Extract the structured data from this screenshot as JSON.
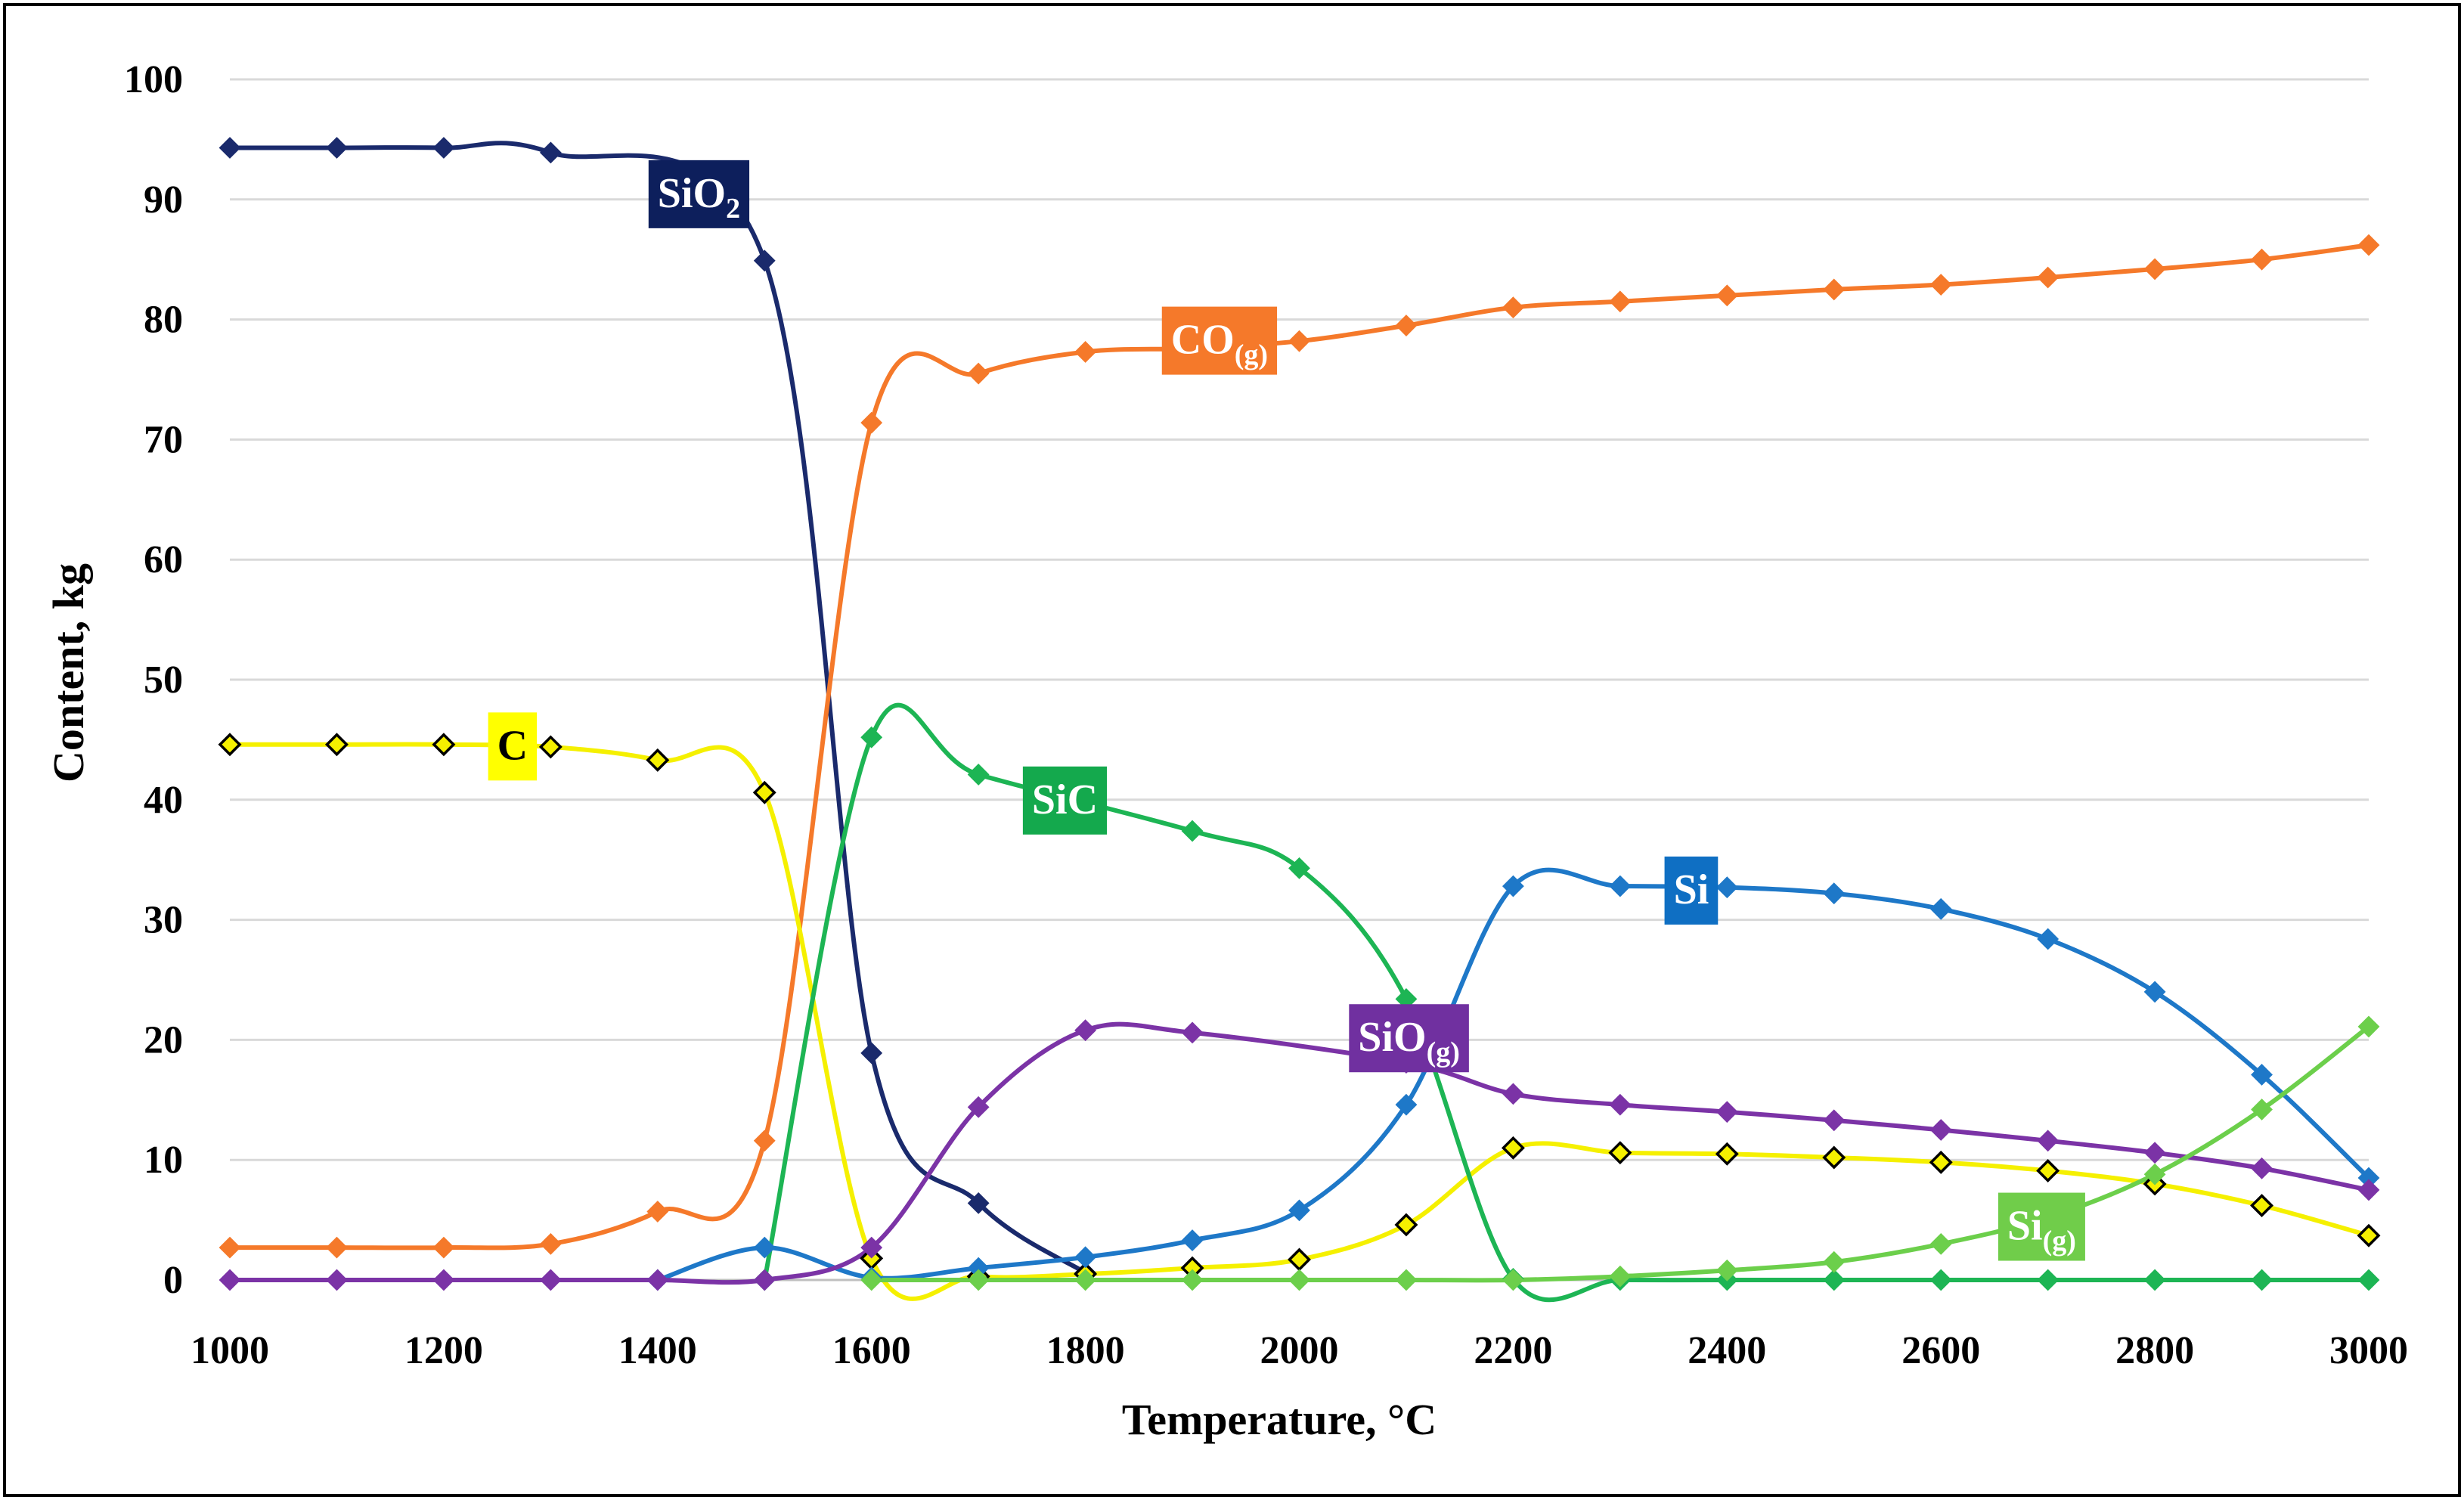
{
  "chart_data": {
    "type": "line",
    "title": "",
    "xlabel": "Temperature, °C",
    "ylabel": "Content,  kg",
    "xlim": [
      1000,
      3000
    ],
    "ylim": [
      0,
      100
    ],
    "x_ticks": [
      1000,
      1200,
      1400,
      1600,
      1800,
      2000,
      2200,
      2400,
      2600,
      2800,
      3000
    ],
    "y_ticks": [
      0,
      10,
      20,
      30,
      40,
      50,
      60,
      70,
      80,
      90,
      100
    ],
    "grid": "horizontal",
    "x": [
      1000,
      1100,
      1200,
      1300,
      1400,
      1500,
      1600,
      1700,
      1800,
      1900,
      2000,
      2100,
      2200,
      2300,
      2400,
      2500,
      2600,
      2700,
      2800,
      2900,
      3000
    ],
    "series": [
      {
        "name": "SiO2",
        "label_main": "SiO",
        "label_sub": "2",
        "color": "#1a2a6c",
        "label_bg": "#0d1f5c",
        "label_fg": "#ffffff",
        "marker": "filled-diamond",
        "values": [
          94.3,
          94.3,
          94.3,
          93.9,
          null,
          84.9,
          18.9,
          6.4,
          0.6,
          null,
          null,
          null,
          null,
          null,
          null,
          null,
          null,
          null,
          null,
          null,
          null
        ],
        "label_at": [
          1400,
          90.5
        ]
      },
      {
        "name": "CO(g)",
        "label_main": "CO",
        "label_sub": "(g)",
        "color": "#f5792a",
        "label_bg": "#f5792a",
        "label_fg": "#ffffff",
        "marker": "filled-diamond",
        "values": [
          2.7,
          2.7,
          2.7,
          3.0,
          5.7,
          11.6,
          71.4,
          75.5,
          77.3,
          77.6,
          78.2,
          79.5,
          81.0,
          81.5,
          82.0,
          82.5,
          82.9,
          83.5,
          84.2,
          85.0,
          86.2
        ],
        "label_at": [
          1880,
          78.3
        ]
      },
      {
        "name": "C",
        "label_main": "C",
        "label_sub": "",
        "color": "#f5f000",
        "label_bg": "#ffff00",
        "label_fg": "#000000",
        "marker": "hollow-diamond",
        "values": [
          44.6,
          44.6,
          44.6,
          44.4,
          43.3,
          40.6,
          1.8,
          0.3,
          0.5,
          1.0,
          1.7,
          4.6,
          11.0,
          10.6,
          10.5,
          10.2,
          9.8,
          9.1,
          8.0,
          6.2,
          3.7
        ],
        "label_at": [
          1250,
          44.5
        ]
      },
      {
        "name": "SiC",
        "label_main": "SiC",
        "label_sub": "",
        "color": "#1db554",
        "label_bg": "#14a94d",
        "label_fg": "#ffffff",
        "marker": "filled-diamond",
        "values": [
          null,
          null,
          null,
          null,
          null,
          0.0,
          45.2,
          42.1,
          null,
          37.4,
          34.3,
          23.4,
          0.1,
          0.0,
          0.0,
          0.0,
          0.0,
          0.0,
          0.0,
          0.0,
          0.0
        ],
        "label_at": [
          1750,
          40.0
        ]
      },
      {
        "name": "Si",
        "label_main": "Si",
        "label_sub": "",
        "color": "#1e78c8",
        "label_bg": "#0f6fc3",
        "label_fg": "#ffffff",
        "marker": "filled-diamond",
        "values": [
          null,
          null,
          null,
          null,
          0.0,
          2.7,
          0.2,
          1.0,
          1.9,
          3.3,
          5.8,
          14.6,
          32.8,
          32.8,
          32.7,
          32.2,
          30.9,
          28.4,
          24.0,
          17.1,
          8.5
        ],
        "label_at": [
          2350,
          32.5
        ]
      },
      {
        "name": "SiO(g)",
        "label_main": "SiO",
        "label_sub": "(g)",
        "color": "#7b33a6",
        "label_bg": "#7030a0",
        "label_fg": "#ffffff",
        "marker": "filled-diamond",
        "values": [
          0.0,
          0.0,
          0.0,
          0.0,
          0.0,
          0.0,
          2.7,
          14.4,
          20.8,
          20.6,
          null,
          18.1,
          15.5,
          14.6,
          14.0,
          13.3,
          12.5,
          11.6,
          10.6,
          9.3,
          7.5
        ],
        "label_at": [
          2055,
          20.2
        ]
      },
      {
        "name": "Si(g)",
        "label_main": "Si",
        "label_sub": "(g)",
        "color": "#6ccf4b",
        "label_bg": "#70cd4a",
        "label_fg": "#ffffff",
        "marker": "filled-diamond",
        "values": [
          null,
          null,
          null,
          null,
          null,
          null,
          0.0,
          0.0,
          0.0,
          0.0,
          0.0,
          0.0,
          0.0,
          0.3,
          0.8,
          1.5,
          3.0,
          5.2,
          8.8,
          14.2,
          21.1
        ],
        "label_at": [
          2662,
          4.5
        ]
      }
    ]
  }
}
